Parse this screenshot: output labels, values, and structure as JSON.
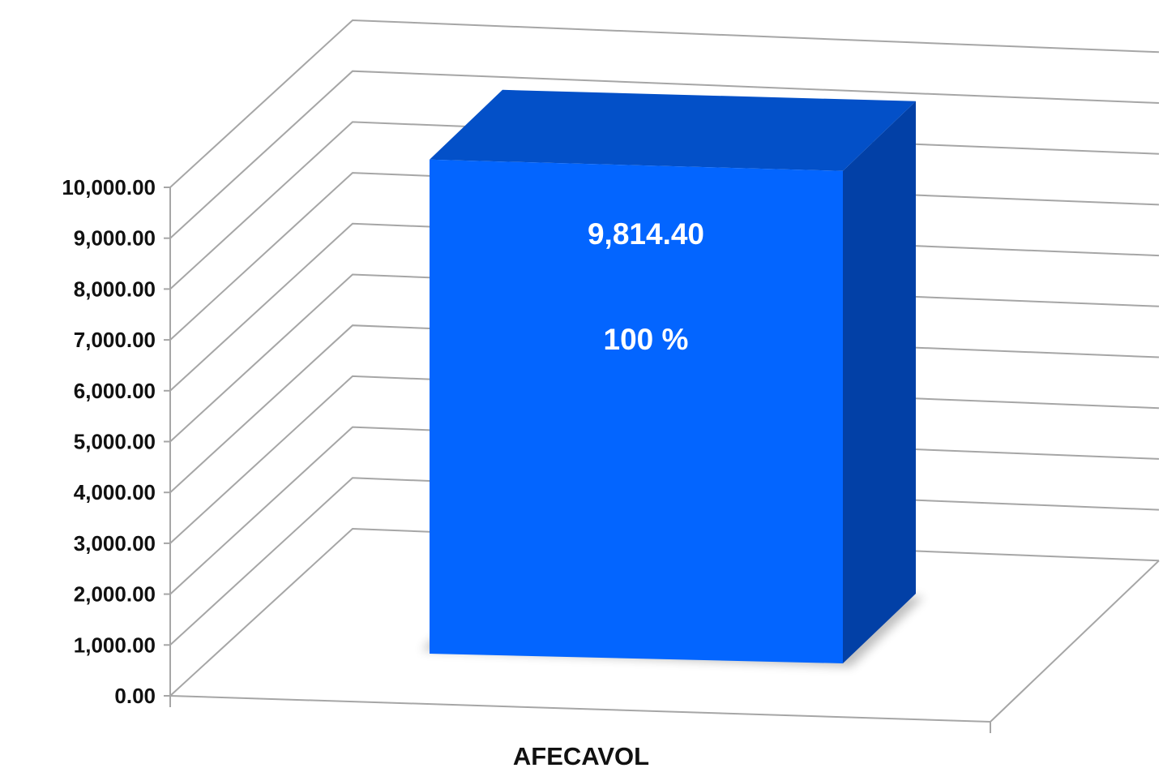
{
  "chart_data": {
    "type": "bar",
    "style": "3d-column",
    "categories": [
      "AFECAVOL"
    ],
    "values": [
      9814.4
    ],
    "value_labels": [
      "9,814.40"
    ],
    "percent_labels": [
      "100 %"
    ],
    "ylim": [
      0,
      10000
    ],
    "y_ticks": [
      "0.00",
      "1,000.00",
      "2,000.00",
      "3,000.00",
      "4,000.00",
      "5,000.00",
      "6,000.00",
      "7,000.00",
      "8,000.00",
      "9,000.00",
      "10,000.00"
    ],
    "grid": true,
    "legend": "none",
    "title": "",
    "xlabel": "",
    "ylabel": "",
    "colors": {
      "bar_front": "#0365ff",
      "bar_top": "#0350c8",
      "bar_side": "#0240a6",
      "grid": "#a6a6a6"
    }
  }
}
